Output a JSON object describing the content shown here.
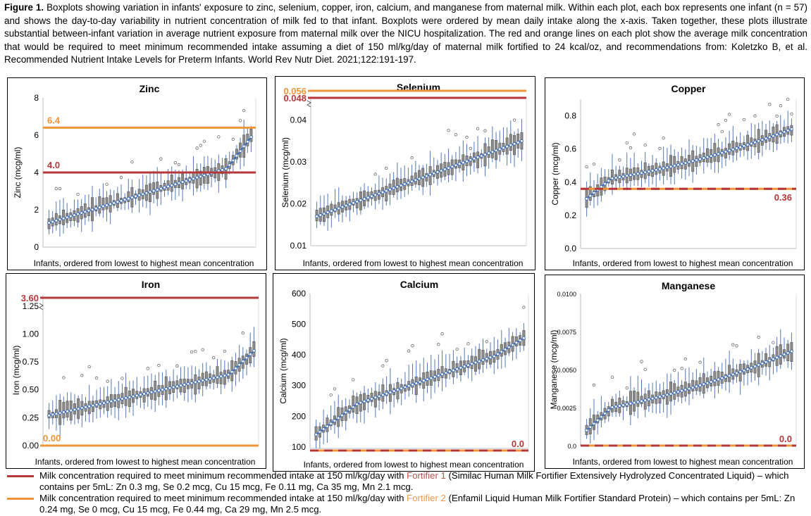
{
  "caption": {
    "figure_label": "Figure 1.",
    "text": "Boxplots showing variation in infants' exposure to zinc, selenium, copper, iron, calcium, and manganese from maternal milk. Within each plot, each box represents one infant (n = 57) and shows the day-to-day variability in nutrient concentration of milk fed to that infant. Boxplots were ordered by mean daily intake along the x-axis. Taken together, these plots illustrate substantial between-infant variation in average nutrient exposure from maternal milk over the NICU hospitalization. The red and orange lines on each plot show the average milk concentration that would be required to meet minimum recommended intake assuming a diet of 150 ml/kg/day of maternal milk fortified to 24 kcal/oz, and recommendations from: Koletzko B, et al. Recommended Nutrient Intake Levels for Preterm Infants. World Rev Nutr Diet. 2021;122:191-197."
  },
  "colors": {
    "red_line": "#b5373a",
    "orange_line": "#f0943a",
    "mean_line": "#3d6bb5",
    "box_fill": "#8c8c8c",
    "whisker": "#5577bb",
    "fortifier1_text": "#c0504d",
    "fortifier2_text": "#f79646"
  },
  "legend": [
    {
      "pre": "Milk concentration required to meet minimum recommended intake at 150 ml/kg/day with ",
      "fortifier": "Fortifier 1",
      "post": " (Similac Human Milk Fortifier Extensively Hydrolyzed Concentrated Liquid) – which contains per 5mL: Zn 0.3 mg, Se 0.2 mcg, Cu 15 mcg, Fe 0.11 mg, Ca 35 mg, Mn 2.1 mcg.",
      "color": "red"
    },
    {
      "pre": "Milk concentration required to meet minimum recommended intake at 150 ml/kg/day with ",
      "fortifier": "Fortifier 2",
      "post": " (Enfamil Liquid Human Milk Fortifier Standard Protein) – which contains per 5mL: Zn 0.24 mg, Se 0 mcg, Cu 15 mcg, Fe 0.44 mg, Ca 29 mg, Mn 2.5 mcg.",
      "color": "orange"
    }
  ],
  "chart_data": [
    {
      "type": "box",
      "title": "Zinc",
      "ylabel": "Zinc (mcg/ml)",
      "xlabel": "Infants, ordered from lowest to highest mean concentration",
      "n": 57,
      "ylim": [
        0,
        8
      ],
      "yticks": [
        "0",
        "2",
        "4",
        "6",
        "8"
      ],
      "mean_start": 1.3,
      "mean_end": 5.9,
      "mean_shape": "rise",
      "ref_lines": [
        {
          "fortifier": "Fortifier 1",
          "value": 4.0,
          "label": "4.0"
        },
        {
          "fortifier": "Fortifier 2",
          "value": 6.4,
          "label": "6.4"
        }
      ]
    },
    {
      "type": "box",
      "title": "Selenium",
      "ylabel": "Selenium (mcg/ml)",
      "xlabel": "Infants, ordered from lowest to highest mean concentration",
      "n": 57,
      "ylim": [
        0.01,
        0.045
      ],
      "yticks": [
        "0.01",
        "0.02",
        "0.03",
        "0.04"
      ],
      "mean_start": 0.017,
      "mean_end": 0.035,
      "mean_shape": "linear",
      "axis_break": true,
      "ref_lines": [
        {
          "fortifier": "Fortifier 1",
          "value": 0.048,
          "label": "0.048"
        },
        {
          "fortifier": "Fortifier 2",
          "value": 0.056,
          "label": "0.056"
        }
      ]
    },
    {
      "type": "box",
      "title": "Copper",
      "ylabel": "Copper (mcg/ml)",
      "xlabel": "Infants, ordered from lowest to highest mean concentration",
      "n": 57,
      "ylim": [
        0,
        0.9
      ],
      "yticks": [
        "0.0",
        "0.2",
        "0.4",
        "0.6",
        "0.8"
      ],
      "mean_start": 0.3,
      "mean_end": 0.72,
      "mean_shape": "plateau",
      "ref_lines": [
        {
          "fortifier": "Fortifier 1",
          "value": 0.36,
          "label": "0.36",
          "dashed": true
        }
      ]
    },
    {
      "type": "box",
      "title": "Iron",
      "ylabel": "Iron (mcg/ml)",
      "xlabel": "Infants, ordered from lowest to highest mean concentration",
      "n": 57,
      "ylim": [
        0,
        1.35
      ],
      "yticks": [
        "0.00",
        "0.25",
        "0.50",
        "0.75",
        "1.00",
        "1.25"
      ],
      "mean_start": 0.27,
      "mean_end": 0.85,
      "mean_shape": "rise",
      "axis_break": true,
      "ref_lines": [
        {
          "fortifier": "Fortifier 1",
          "value": 3.6,
          "label": "3.60"
        },
        {
          "fortifier": "Fortifier 2",
          "value": 0.0,
          "label": "0.00"
        }
      ]
    },
    {
      "type": "box",
      "title": "Calcium",
      "ylabel": "Calcium (mcg/ml)",
      "xlabel": "Infants, ordered from lowest to highest mean concentration",
      "n": 57,
      "ylim": [
        95,
        600
      ],
      "yticks": [
        "100",
        "200",
        "300",
        "400",
        "500",
        "600"
      ],
      "mean_start": 140,
      "mean_end": 455,
      "mean_shape": "scurve",
      "ref_lines": [
        {
          "fortifier": "Fortifier 1",
          "value": 0.0,
          "label": "0.0",
          "dashed": true
        }
      ]
    },
    {
      "type": "box",
      "title": "Manganese",
      "ylabel": "Manganese (mcg/ml)",
      "xlabel": "Infants, ordered from lowest to highest mean concentration",
      "n": 57,
      "ylim": [
        0,
        0.01
      ],
      "yticks": [
        "0.0",
        "0.0025",
        "0.0050",
        "0.0075",
        "0.0100"
      ],
      "mean_start": 0.001,
      "mean_end": 0.0062,
      "mean_shape": "plateau",
      "ref_lines": [
        {
          "fortifier": "Fortifier 1",
          "value": 0.0,
          "label": "0.0",
          "dashed": true
        }
      ]
    }
  ]
}
